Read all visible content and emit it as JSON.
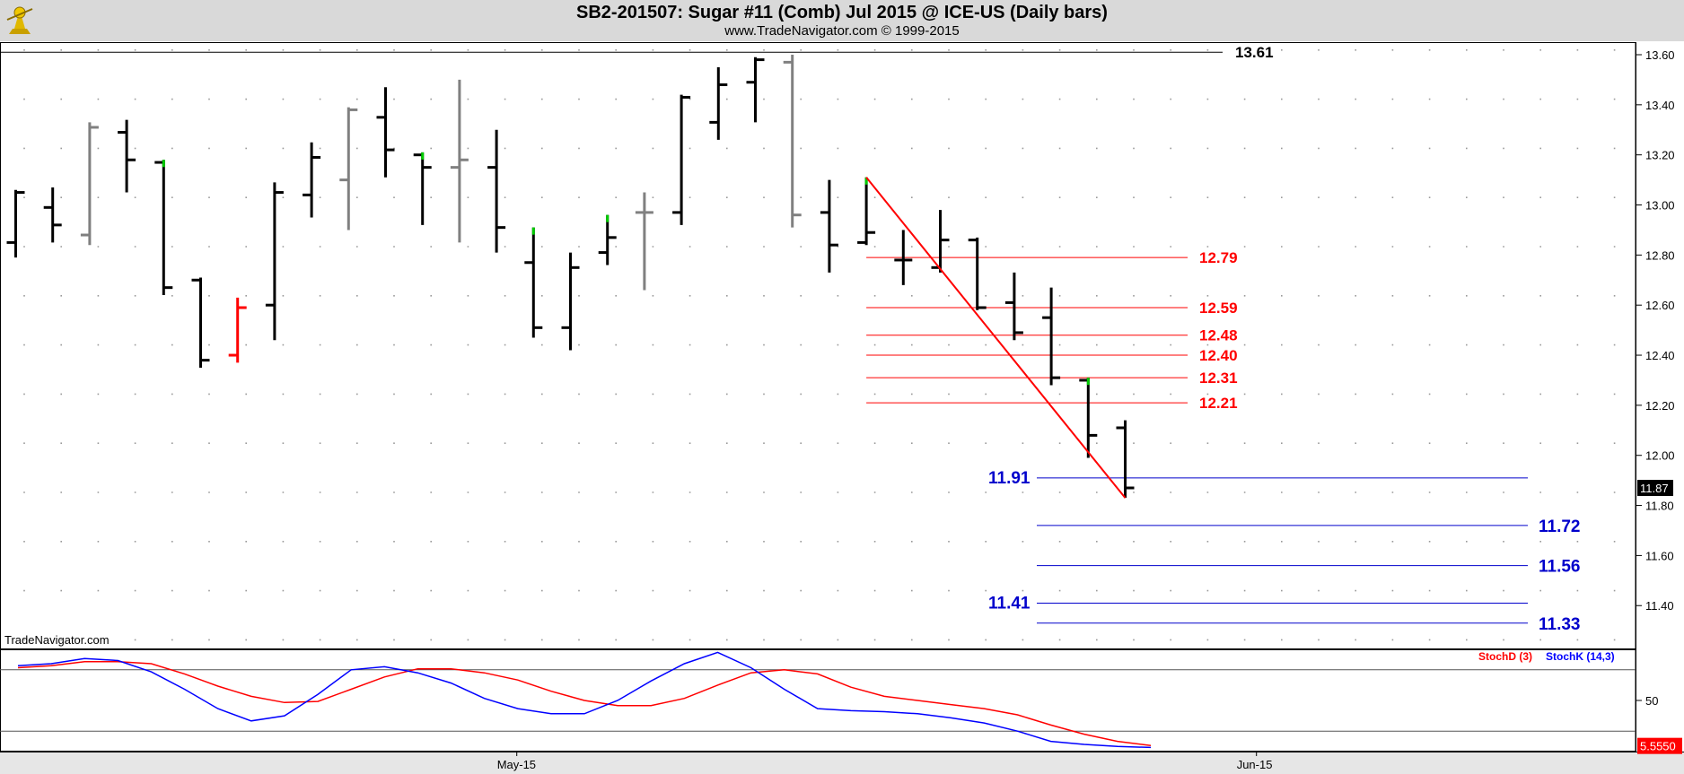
{
  "header": {
    "title": "SB2-201507:  Sugar #11 (Comb) Jul 2015 @ ICE-US  (Daily bars)",
    "subtitle": "www.TradeNavigator.com © 1999-2015"
  },
  "watermark": "TradeNavigator.com",
  "chart_data": [
    {
      "type": "bar",
      "subtype": "ohlc",
      "title": "SB2-201507:  Sugar #11 (Comb) Jul 2015 @ ICE-US  (Daily bars)",
      "y_ticks": [
        "13.60",
        "13.40",
        "13.20",
        "13.00",
        "12.80",
        "12.60",
        "12.40",
        "12.20",
        "12.00",
        "11.80",
        "11.60",
        "11.40"
      ],
      "ylim": [
        11.22,
        13.66
      ],
      "x_ticks": [
        {
          "label": "May-15",
          "bar_index": 13.5
        },
        {
          "label": "Jun-15",
          "bar_index": 33.5
        }
      ],
      "grid": true,
      "last_price": "11.87",
      "bars": [
        {
          "o": 12.85,
          "h": 13.06,
          "l": 12.79,
          "c": 13.05,
          "color": "#000000"
        },
        {
          "o": 12.99,
          "h": 13.07,
          "l": 12.85,
          "c": 12.92,
          "color": "#000000"
        },
        {
          "o": 12.88,
          "h": 13.33,
          "l": 12.84,
          "c": 13.31,
          "color": "#808080"
        },
        {
          "o": 13.29,
          "h": 13.34,
          "l": 13.05,
          "c": 13.18,
          "color": "#000000"
        },
        {
          "o": 13.17,
          "h": 13.18,
          "l": 12.64,
          "c": 12.67,
          "color": "#000000",
          "cross": "#00cc00"
        },
        {
          "o": 12.7,
          "h": 12.71,
          "l": 12.35,
          "c": 12.38,
          "color": "#000000"
        },
        {
          "o": 12.4,
          "h": 12.63,
          "l": 12.37,
          "c": 12.59,
          "color": "#ff0000"
        },
        {
          "o": 12.6,
          "h": 13.09,
          "l": 12.46,
          "c": 13.05,
          "color": "#000000"
        },
        {
          "o": 13.04,
          "h": 13.25,
          "l": 12.95,
          "c": 13.19,
          "color": "#000000"
        },
        {
          "o": 13.1,
          "h": 13.39,
          "l": 12.9,
          "c": 13.38,
          "color": "#808080"
        },
        {
          "o": 13.35,
          "h": 13.47,
          "l": 13.11,
          "c": 13.22,
          "color": "#000000"
        },
        {
          "o": 13.2,
          "h": 13.21,
          "l": 12.92,
          "c": 13.15,
          "color": "#000000",
          "cross": "#00cc00"
        },
        {
          "o": 13.15,
          "h": 13.5,
          "l": 12.85,
          "c": 13.18,
          "color": "#808080"
        },
        {
          "o": 13.15,
          "h": 13.3,
          "l": 12.81,
          "c": 12.91,
          "color": "#000000"
        },
        {
          "o": 12.77,
          "h": 12.91,
          "l": 12.47,
          "c": 12.51,
          "color": "#000000",
          "cross": "#00cc00"
        },
        {
          "o": 12.51,
          "h": 12.81,
          "l": 12.42,
          "c": 12.75,
          "color": "#000000"
        },
        {
          "o": 12.81,
          "h": 12.96,
          "l": 12.76,
          "c": 12.87,
          "color": "#000000",
          "cross": "#00cc00"
        },
        {
          "o": 12.97,
          "h": 13.05,
          "l": 12.66,
          "c": 12.97,
          "color": "#808080"
        },
        {
          "o": 12.97,
          "h": 13.44,
          "l": 12.92,
          "c": 13.43,
          "color": "#000000"
        },
        {
          "o": 13.33,
          "h": 13.55,
          "l": 13.26,
          "c": 13.48,
          "color": "#000000"
        },
        {
          "o": 13.49,
          "h": 13.59,
          "l": 13.33,
          "c": 13.58,
          "color": "#000000"
        },
        {
          "o": 13.57,
          "h": 13.6,
          "l": 12.91,
          "c": 12.96,
          "color": "#808080"
        },
        {
          "o": 12.97,
          "h": 13.1,
          "l": 12.73,
          "c": 12.84,
          "color": "#000000"
        },
        {
          "o": 12.85,
          "h": 13.11,
          "l": 12.84,
          "c": 12.89,
          "color": "#000000",
          "cross": "#00cc00"
        },
        {
          "o": 12.78,
          "h": 12.9,
          "l": 12.68,
          "c": 12.78,
          "color": "#000000"
        },
        {
          "o": 12.75,
          "h": 12.98,
          "l": 12.73,
          "c": 12.86,
          "color": "#000000"
        },
        {
          "o": 12.86,
          "h": 12.87,
          "l": 12.58,
          "c": 12.59,
          "color": "#000000"
        },
        {
          "o": 12.61,
          "h": 12.73,
          "l": 12.46,
          "c": 12.49,
          "color": "#000000"
        },
        {
          "o": 12.55,
          "h": 12.67,
          "l": 12.28,
          "c": 12.31,
          "color": "#000000"
        },
        {
          "o": 12.3,
          "h": 12.31,
          "l": 11.99,
          "c": 12.08,
          "color": "#000000",
          "cross": "#00cc00"
        },
        {
          "o": 12.11,
          "h": 12.14,
          "l": 11.83,
          "c": 11.87,
          "color": "#000000"
        }
      ],
      "trendline": {
        "from_bar": 23,
        "from_price": 13.11,
        "to_bar": 30,
        "to_price": 11.83,
        "color": "#ff0000"
      },
      "resistance_levels": {
        "color": "#ff0000",
        "from_bar": 23,
        "levels": [
          {
            "value": 12.79,
            "label": "12.79"
          },
          {
            "value": 12.59,
            "label": "12.59"
          },
          {
            "value": 12.48,
            "label": "12.48"
          },
          {
            "value": 12.4,
            "label": "12.40"
          },
          {
            "value": 12.31,
            "label": "12.31"
          },
          {
            "value": 12.21,
            "label": "12.21"
          }
        ]
      },
      "support_levels": {
        "color": "#0000cc",
        "from_bar": 27.9,
        "levels": [
          {
            "value": 11.91,
            "label": "11.91",
            "label_side": "left"
          },
          {
            "value": 11.72,
            "label": "11.72",
            "label_side": "right"
          },
          {
            "value": 11.56,
            "label": "11.56",
            "label_side": "right"
          },
          {
            "value": 11.41,
            "label": "11.41",
            "label_side": "left"
          },
          {
            "value": 11.33,
            "label": "11.33",
            "label_side": "right"
          }
        ]
      },
      "high_line": {
        "value": 13.61,
        "label": "13.61"
      }
    },
    {
      "type": "line",
      "title": "",
      "ylim": [
        0,
        100
      ],
      "y_ticks": [
        "50"
      ],
      "reference_lines": [
        80,
        20
      ],
      "last_value": "5.5550",
      "series": [
        {
          "name": "StochD (3)",
          "color": "#ff0000",
          "values": [
            82,
            84,
            88,
            88,
            86,
            76,
            64,
            54,
            48,
            49,
            61,
            73,
            81,
            81,
            77,
            70,
            59,
            50,
            45,
            45,
            52,
            65,
            77,
            80,
            76,
            63,
            54,
            50,
            46,
            42,
            36,
            26,
            17,
            10,
            6
          ]
        },
        {
          "name": "StochK (14,3)",
          "color": "#0000ff",
          "values": [
            84,
            86,
            91,
            89,
            78,
            61,
            42,
            30,
            35,
            56,
            80,
            83,
            77,
            67,
            52,
            42,
            37,
            37,
            50,
            69,
            86,
            97,
            82,
            61,
            42,
            40,
            39,
            37,
            33,
            28,
            20,
            10,
            7,
            5,
            4
          ]
        }
      ]
    }
  ]
}
